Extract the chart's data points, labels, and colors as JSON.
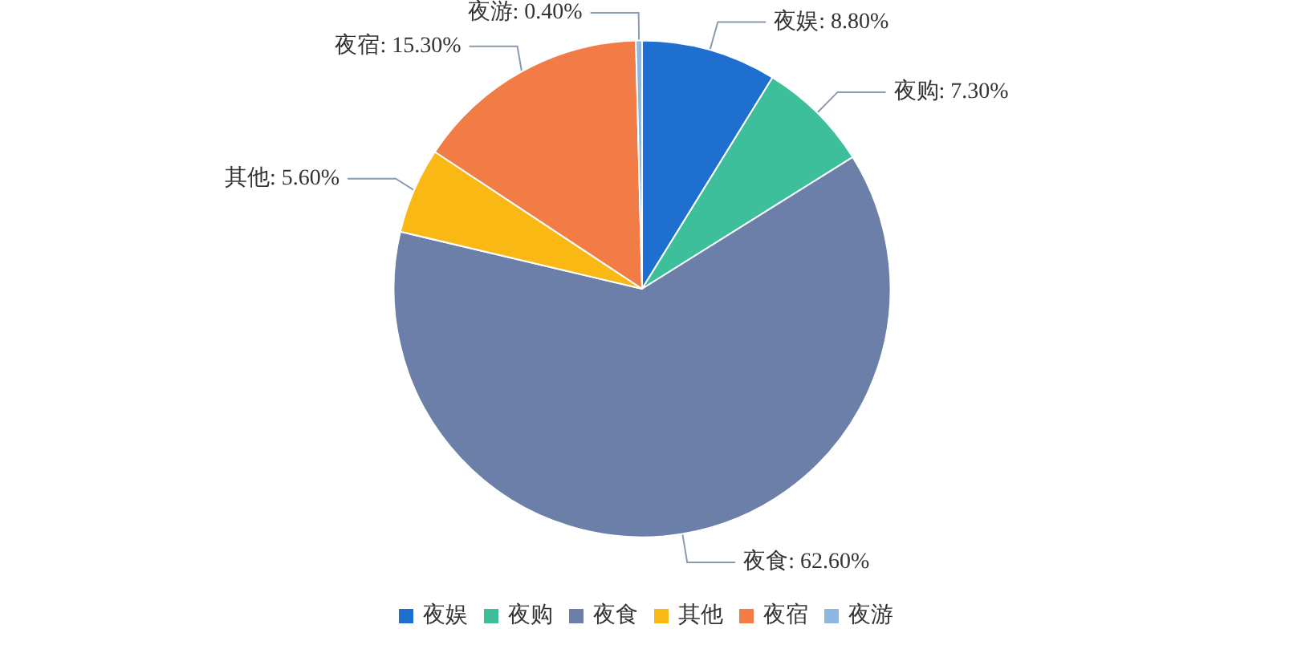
{
  "chart_data": {
    "type": "pie",
    "categories": [
      "夜娱",
      "夜购",
      "夜食",
      "其他",
      "夜宿",
      "夜游"
    ],
    "values": [
      8.8,
      7.3,
      62.6,
      5.6,
      15.3,
      0.4
    ],
    "value_labels": [
      "夜娱: 8.80%",
      "夜购: 7.30%",
      "夜食: 62.60%",
      "其他: 5.60%",
      "夜宿: 15.30%",
      "夜游: 0.40%"
    ],
    "colors": [
      "#1f6fd0",
      "#3cbf9a",
      "#6b7fa8",
      "#f9b814",
      "#f27c46",
      "#8fb7e0"
    ],
    "legend": "bottom"
  }
}
